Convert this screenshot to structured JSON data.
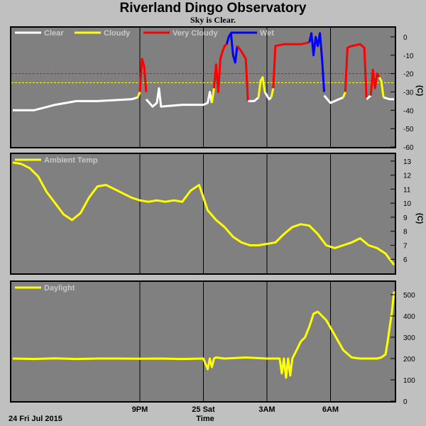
{
  "title": "Riverland Dingo Observatory",
  "subtitle": "Sky is Clear.",
  "date_label": "24 Fri Jul 2015",
  "x_axis_label": "Time",
  "x_ticks": [
    {
      "t": 3.0,
      "label": "9PM"
    },
    {
      "t": 4.5,
      "label": "25 Sat"
    },
    {
      "t": 6.0,
      "label": "3AM"
    },
    {
      "t": 7.5,
      "label": "6AM"
    }
  ],
  "colors": {
    "panel_bg": "#808080",
    "grid": "#000000",
    "clear": "#ffffff",
    "cloudy": "#ffff00",
    "very_cloudy": "#ff0000",
    "wet": "#0000ff",
    "ambient": "#ffff00",
    "daylight": "#ffff00",
    "threshold_red": "#ff0000",
    "threshold_yellow": "#ffff00"
  },
  "chart_data": [
    {
      "type": "line",
      "name": "sky",
      "x_unit": "hours_after_6pm",
      "ylabel": "(C)",
      "ylim": [
        -60,
        5
      ],
      "yticks": [
        0,
        -10,
        -20,
        -30,
        -40,
        -50,
        -60
      ],
      "legend": [
        "Clear",
        "Cloudy",
        "Very Cloudy",
        "Wet"
      ],
      "thresholds": [
        {
          "value": -20,
          "color": "red"
        },
        {
          "value": -25,
          "color": "yellow"
        }
      ],
      "segments": [
        {
          "state": "clear",
          "points": [
            [
              0.0,
              -40
            ],
            [
              0.5,
              -40
            ],
            [
              1.0,
              -37
            ],
            [
              1.5,
              -35
            ],
            [
              2.0,
              -35
            ],
            [
              2.8,
              -34
            ],
            [
              2.95,
              -33
            ]
          ]
        },
        {
          "state": "cloudy",
          "points": [
            [
              2.95,
              -33
            ],
            [
              3.0,
              -30
            ]
          ]
        },
        {
          "state": "very_cloudy",
          "points": [
            [
              3.0,
              -30
            ],
            [
              3.05,
              -12
            ],
            [
              3.1,
              -16
            ],
            [
              3.15,
              -30
            ]
          ]
        },
        {
          "state": "clear",
          "points": [
            [
              3.15,
              -34
            ],
            [
              3.3,
              -38
            ],
            [
              3.4,
              -36
            ],
            [
              3.45,
              -28
            ],
            [
              3.5,
              -38
            ],
            [
              4.0,
              -37
            ],
            [
              4.5,
              -37
            ],
            [
              4.6,
              -36
            ],
            [
              4.65,
              -30
            ],
            [
              4.7,
              -36
            ]
          ]
        },
        {
          "state": "cloudy",
          "points": [
            [
              4.7,
              -36
            ],
            [
              4.75,
              -28
            ]
          ]
        },
        {
          "state": "very_cloudy",
          "points": [
            [
              4.75,
              -28
            ],
            [
              4.8,
              -15
            ],
            [
              4.85,
              -30
            ],
            [
              4.9,
              -12
            ],
            [
              4.95,
              -8
            ],
            [
              5.0,
              -5
            ],
            [
              5.05,
              -4
            ]
          ]
        },
        {
          "state": "wet",
          "points": [
            [
              5.05,
              -4
            ],
            [
              5.1,
              0
            ],
            [
              5.15,
              2
            ],
            [
              5.2,
              -10
            ],
            [
              5.25,
              -14
            ],
            [
              5.3,
              -5
            ]
          ]
        },
        {
          "state": "very_cloudy",
          "points": [
            [
              5.3,
              -5
            ],
            [
              5.4,
              -8
            ],
            [
              5.5,
              -12
            ],
            [
              5.55,
              -35
            ]
          ]
        },
        {
          "state": "clear",
          "points": [
            [
              5.55,
              -35
            ],
            [
              5.7,
              -35
            ],
            [
              5.8,
              -33
            ]
          ]
        },
        {
          "state": "cloudy",
          "points": [
            [
              5.8,
              -33
            ],
            [
              5.85,
              -24
            ],
            [
              5.9,
              -22
            ],
            [
              5.95,
              -30
            ]
          ]
        },
        {
          "state": "clear",
          "points": [
            [
              5.95,
              -30
            ],
            [
              6.05,
              -34
            ],
            [
              6.1,
              -33
            ]
          ]
        },
        {
          "state": "cloudy",
          "points": [
            [
              6.1,
              -33
            ],
            [
              6.15,
              -28
            ]
          ]
        },
        {
          "state": "very_cloudy",
          "points": [
            [
              6.15,
              -28
            ],
            [
              6.2,
              -5
            ],
            [
              6.4,
              -4
            ],
            [
              6.8,
              -4
            ],
            [
              7.0,
              -3
            ]
          ]
        },
        {
          "state": "wet",
          "points": [
            [
              7.0,
              -3
            ],
            [
              7.05,
              2
            ],
            [
              7.1,
              -10
            ],
            [
              7.15,
              0
            ],
            [
              7.2,
              -5
            ],
            [
              7.25,
              2
            ],
            [
              7.3,
              -12
            ],
            [
              7.35,
              -30
            ]
          ]
        },
        {
          "state": "clear",
          "points": [
            [
              7.35,
              -32
            ],
            [
              7.5,
              -36
            ],
            [
              7.7,
              -34
            ],
            [
              7.8,
              -33
            ]
          ]
        },
        {
          "state": "cloudy",
          "points": [
            [
              7.8,
              -33
            ],
            [
              7.85,
              -30
            ]
          ]
        },
        {
          "state": "very_cloudy",
          "points": [
            [
              7.85,
              -30
            ],
            [
              7.9,
              -6
            ],
            [
              8.0,
              -5
            ],
            [
              8.2,
              -4
            ],
            [
              8.3,
              -6
            ],
            [
              8.35,
              -34
            ]
          ]
        },
        {
          "state": "clear",
          "points": [
            [
              8.35,
              -34
            ],
            [
              8.45,
              -32
            ]
          ]
        },
        {
          "state": "very_cloudy",
          "points": [
            [
              8.45,
              -32
            ],
            [
              8.5,
              -18
            ],
            [
              8.55,
              -28
            ],
            [
              8.6,
              -20
            ],
            [
              8.65,
              -22
            ]
          ]
        },
        {
          "state": "cloudy",
          "points": [
            [
              8.65,
              -22
            ],
            [
              8.7,
              -24
            ],
            [
              8.75,
              -33
            ]
          ]
        },
        {
          "state": "clear",
          "points": [
            [
              8.75,
              -33
            ],
            [
              8.9,
              -34
            ],
            [
              9.0,
              -34
            ]
          ]
        }
      ]
    },
    {
      "type": "line",
      "name": "ambient",
      "series_label": "Ambient Temp",
      "ylabel": "(C)",
      "ylim": [
        5,
        13.5
      ],
      "yticks": [
        6,
        7,
        8,
        9,
        10,
        11,
        12,
        13
      ],
      "x": [
        0.0,
        0.2,
        0.4,
        0.6,
        0.8,
        1.0,
        1.2,
        1.4,
        1.6,
        1.8,
        2.0,
        2.2,
        2.4,
        2.6,
        2.8,
        3.0,
        3.2,
        3.4,
        3.6,
        3.8,
        4.0,
        4.2,
        4.4,
        4.6,
        4.8,
        5.0,
        5.2,
        5.4,
        5.6,
        5.8,
        6.0,
        6.2,
        6.4,
        6.6,
        6.8,
        7.0,
        7.2,
        7.4,
        7.6,
        7.8,
        8.0,
        8.2,
        8.4,
        8.6,
        8.8,
        9.0
      ],
      "values": [
        12.9,
        12.8,
        12.5,
        11.9,
        10.8,
        10.0,
        9.2,
        8.8,
        9.3,
        10.4,
        11.2,
        11.3,
        11.0,
        10.7,
        10.4,
        10.2,
        10.1,
        10.2,
        10.1,
        10.2,
        10.1,
        10.9,
        11.3,
        9.5,
        8.8,
        8.3,
        7.6,
        7.2,
        7.0,
        7.0,
        7.1,
        7.2,
        7.8,
        8.3,
        8.5,
        8.4,
        7.8,
        7.0,
        6.8,
        7.0,
        7.2,
        7.5,
        7.0,
        6.8,
        6.4,
        5.6
      ]
    },
    {
      "type": "line",
      "name": "daylight",
      "series_label": "Daylight",
      "ylim": [
        0,
        560
      ],
      "yticks": [
        0,
        100,
        200,
        300,
        400,
        500
      ],
      "x": [
        0.0,
        0.5,
        1.0,
        1.5,
        2.0,
        2.5,
        3.0,
        3.5,
        4.0,
        4.5,
        4.6,
        4.65,
        4.7,
        4.75,
        4.8,
        5.0,
        5.5,
        6.0,
        6.3,
        6.35,
        6.4,
        6.45,
        6.5,
        6.55,
        6.6,
        6.7,
        6.8,
        6.9,
        7.0,
        7.1,
        7.2,
        7.4,
        7.6,
        7.8,
        8.0,
        8.2,
        8.4,
        8.6,
        8.7,
        8.8,
        8.85,
        8.9,
        8.95,
        9.0
      ],
      "values": [
        200,
        198,
        201,
        198,
        200,
        200,
        199,
        200,
        198,
        200,
        150,
        200,
        160,
        200,
        205,
        200,
        205,
        200,
        200,
        130,
        200,
        110,
        200,
        120,
        200,
        240,
        280,
        300,
        350,
        410,
        420,
        380,
        310,
        240,
        205,
        200,
        200,
        200,
        205,
        220,
        280,
        350,
        420,
        515
      ]
    }
  ]
}
